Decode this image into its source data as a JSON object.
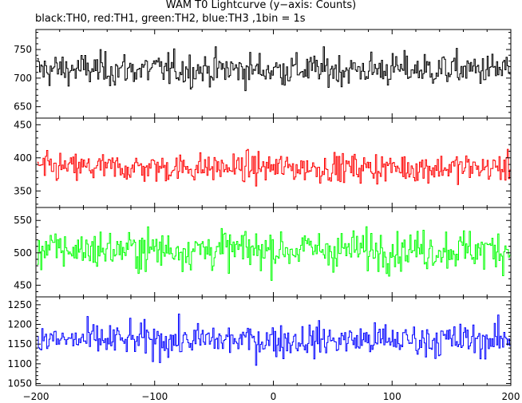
{
  "title": "WAM T0 Lightcurve (y−axis: Counts)",
  "subtitle": "black:TH0, red:TH1, green:TH2, blue:TH3 ,1bin = 1s",
  "chart_data": [
    {
      "type": "line",
      "series": [
        {
          "name": "TH0",
          "mean": 715,
          "sd": 24,
          "min": 650,
          "max": 775
        }
      ],
      "color": "#000000",
      "xlim": [
        -200,
        200
      ],
      "ylim": [
        630,
        785
      ],
      "yticks": [
        650,
        700,
        750
      ],
      "xtick_labels": []
    },
    {
      "type": "line",
      "series": [
        {
          "name": "TH1",
          "mean": 385,
          "sd": 18,
          "min": 328,
          "max": 453
        }
      ],
      "color": "#ff0000",
      "xlim": [
        -200,
        200
      ],
      "ylim": [
        325,
        460
      ],
      "yticks": [
        350,
        400,
        450
      ],
      "xtick_labels": []
    },
    {
      "type": "line",
      "series": [
        {
          "name": "TH2",
          "mean": 505,
          "sd": 25,
          "min": 433,
          "max": 565
        }
      ],
      "color": "#00ff00",
      "xlim": [
        -200,
        200
      ],
      "ylim": [
        432,
        570
      ],
      "yticks": [
        450,
        500,
        550
      ],
      "xtick_labels": []
    },
    {
      "type": "line",
      "series": [
        {
          "name": "TH3",
          "mean": 1160,
          "sd": 35,
          "min": 1050,
          "max": 1260
        }
      ],
      "color": "#0000ff",
      "xlim": [
        -200,
        200
      ],
      "ylim": [
        1045,
        1270
      ],
      "yticks": [
        1050,
        1100,
        1150,
        1200,
        1250
      ],
      "xtick_labels": [
        "−200",
        "−100",
        "0",
        "100",
        "200"
      ]
    }
  ]
}
